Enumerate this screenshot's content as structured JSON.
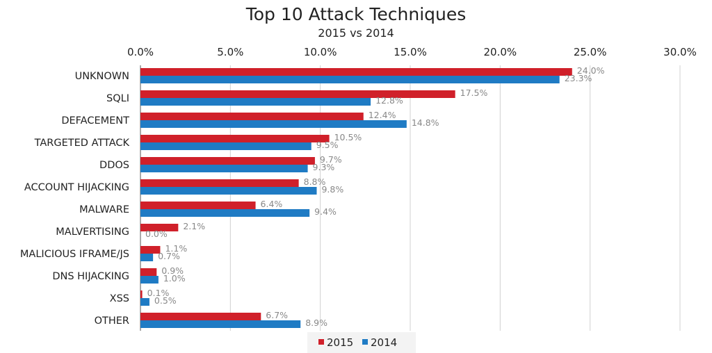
{
  "chart_data": {
    "type": "bar",
    "orientation": "horizontal",
    "title": "Top 10 Attack Techniques",
    "subtitle": "2015 vs 2014",
    "categories": [
      "UNKNOWN",
      "SQLI",
      "DEFACEMENT",
      "TARGETED ATTACK",
      "DDOS",
      "ACCOUNT HIJACKING",
      "MALWARE",
      "MALVERTISING",
      "MALICIOUS IFRAME/JS",
      "DNS HIJACKING",
      "XSS",
      "OTHER"
    ],
    "series": [
      {
        "name": "2015",
        "color": "#d0202a",
        "values": [
          24.0,
          17.5,
          12.4,
          10.5,
          9.7,
          8.8,
          6.4,
          2.1,
          1.1,
          0.9,
          0.1,
          6.7
        ],
        "labels": [
          "24.0%",
          "17.5%",
          "12.4%",
          "10.5%",
          "9.7%",
          "8.8%",
          "6.4%",
          "2.1%",
          "1.1%",
          "0.9%",
          "0.1%",
          "6.7%"
        ]
      },
      {
        "name": "2014",
        "color": "#1f7bc4",
        "values": [
          23.3,
          12.8,
          14.8,
          9.5,
          9.3,
          9.8,
          9.4,
          0.0,
          0.7,
          1.0,
          0.5,
          8.9
        ],
        "labels": [
          "23.3%",
          "12.8%",
          "14.8%",
          "9.5%",
          "9.3%",
          "9.8%",
          "9.4%",
          "0.0%",
          "0.7%",
          "1.0%",
          "0.5%",
          "8.9%"
        ]
      }
    ],
    "xlim": [
      0,
      30
    ],
    "xticks": [
      0,
      5,
      10,
      15,
      20,
      25,
      30
    ],
    "xtick_labels": [
      "0.0%",
      "5.0%",
      "10.0%",
      "15.0%",
      "20.0%",
      "25.0%",
      "30.0%"
    ],
    "x_axis_position": "top",
    "grid": true,
    "legend_position": "bottom-center",
    "colors": {
      "text": "#222222",
      "data_label": "#888888",
      "grid": "#d0d0d0",
      "axis": "#555555"
    }
  }
}
